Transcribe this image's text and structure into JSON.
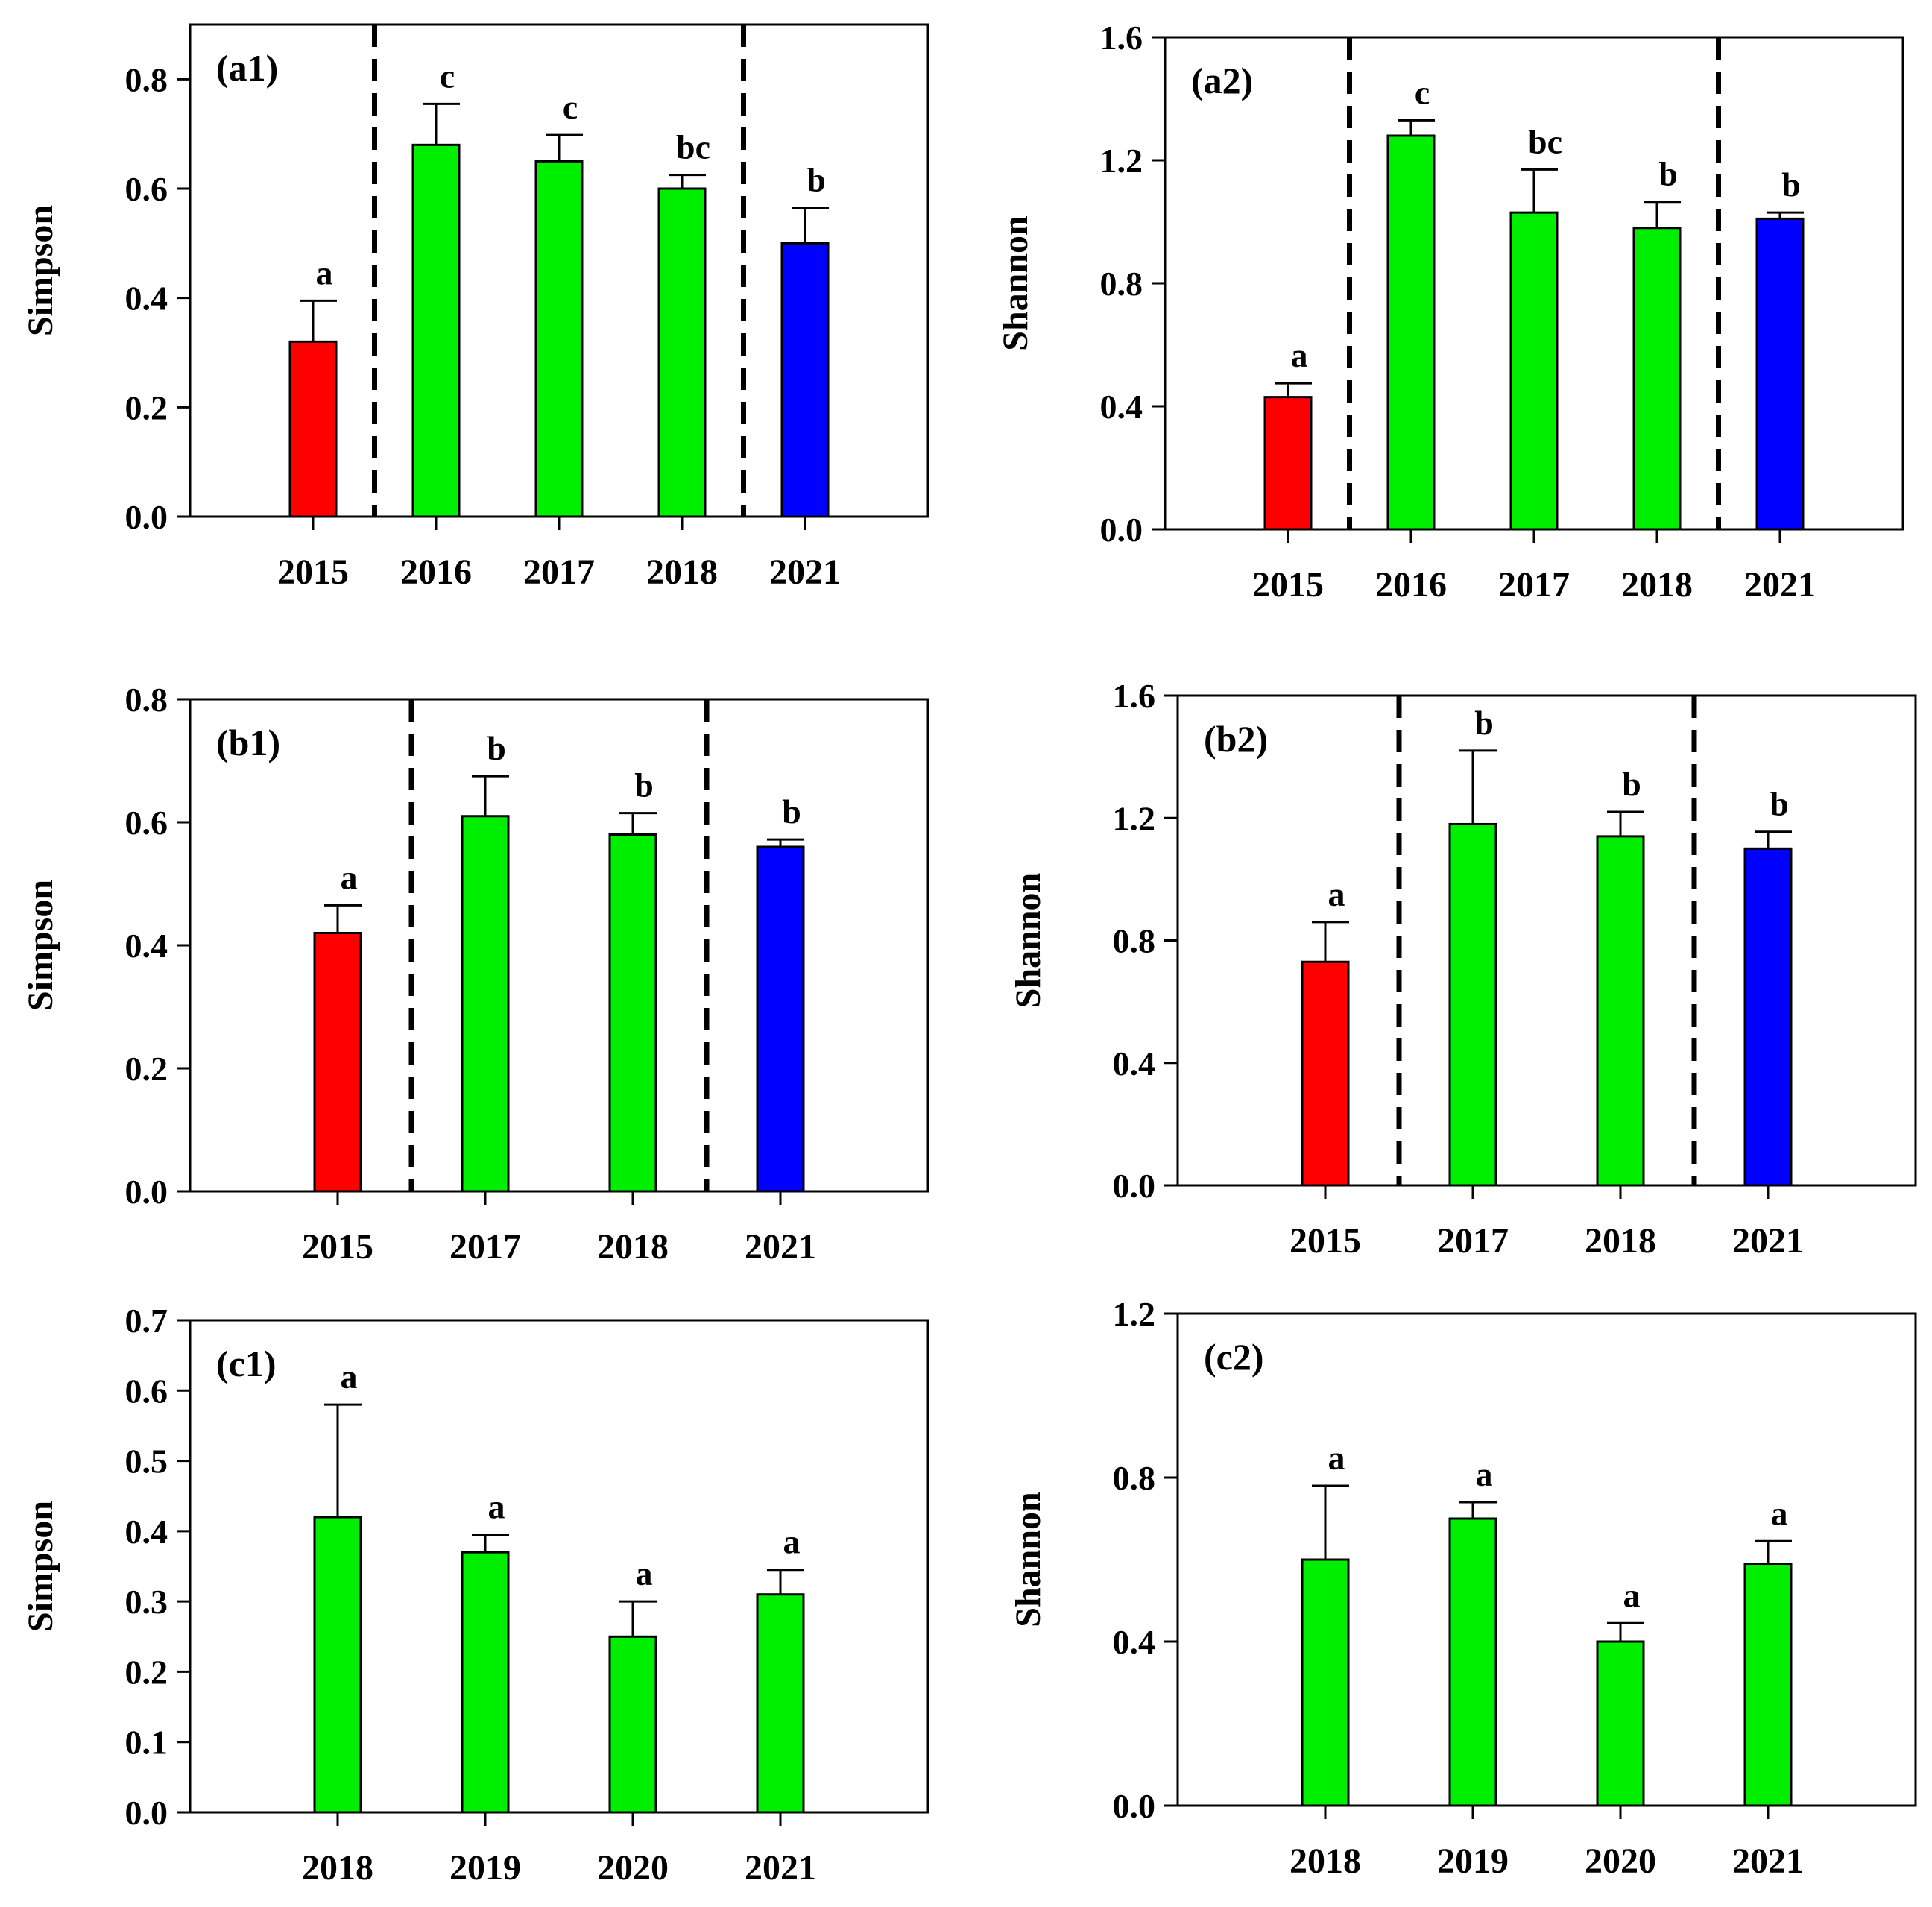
{
  "figure": {
    "colors": {
      "red": "#ff0000",
      "green": "#00ee00",
      "blue": "#0000ff",
      "ink": "#000000"
    },
    "panels": [
      {
        "id": "a1",
        "panel_label": "(a1)",
        "chart_data": {
          "type": "bar",
          "ylabel": "Simpson",
          "xlabel": "",
          "ylim": [
            0,
            0.9
          ],
          "yticks": [
            0,
            0.2,
            0.4,
            0.6,
            0.8
          ],
          "ytick_labels": [
            "0.0",
            "0.2",
            "0.4",
            "0.6",
            "0.8"
          ],
          "categories": [
            "2015",
            "2016",
            "2017",
            "2018",
            "2021"
          ],
          "values": [
            0.32,
            0.68,
            0.65,
            0.6,
            0.5
          ],
          "errors": [
            0.075,
            0.075,
            0.048,
            0.025,
            0.065
          ],
          "sig_letters": [
            "a",
            "c",
            "c",
            "bc",
            "b"
          ],
          "bar_colors": [
            "red",
            "green",
            "green",
            "green",
            "blue"
          ],
          "dividers_after": [
            0,
            3
          ]
        }
      },
      {
        "id": "a2",
        "panel_label": "(a2)",
        "chart_data": {
          "type": "bar",
          "ylabel": "Shannon",
          "xlabel": "",
          "ylim": [
            0,
            1.6
          ],
          "yticks": [
            0,
            0.4,
            0.8,
            1.2,
            1.6
          ],
          "ytick_labels": [
            "0.0",
            "0.4",
            "0.8",
            "1.2",
            "1.6"
          ],
          "categories": [
            "2015",
            "2016",
            "2017",
            "2018",
            "2021"
          ],
          "values": [
            0.43,
            1.28,
            1.03,
            0.98,
            1.01
          ],
          "errors": [
            0.045,
            0.05,
            0.14,
            0.085,
            0.02
          ],
          "sig_letters": [
            "a",
            "c",
            "bc",
            "b",
            "b"
          ],
          "bar_colors": [
            "red",
            "green",
            "green",
            "green",
            "blue"
          ],
          "dividers_after": [
            0,
            3
          ]
        }
      },
      {
        "id": "b1",
        "panel_label": "(b1)",
        "chart_data": {
          "type": "bar",
          "ylabel": "Simpson",
          "xlabel": "",
          "ylim": [
            0,
            0.8
          ],
          "yticks": [
            0,
            0.2,
            0.4,
            0.6,
            0.8
          ],
          "ytick_labels": [
            "0.0",
            "0.2",
            "0.4",
            "0.6",
            "0.8"
          ],
          "categories": [
            "2015",
            "2017",
            "2018",
            "2021"
          ],
          "values": [
            0.42,
            0.61,
            0.58,
            0.56
          ],
          "errors": [
            0.045,
            0.065,
            0.035,
            0.012
          ],
          "sig_letters": [
            "a",
            "b",
            "b",
            "b"
          ],
          "bar_colors": [
            "red",
            "green",
            "green",
            "blue"
          ],
          "dividers_after": [
            0,
            2
          ]
        }
      },
      {
        "id": "b2",
        "panel_label": "(b2)",
        "chart_data": {
          "type": "bar",
          "ylabel": "Shannon",
          "xlabel": "",
          "ylim": [
            0,
            1.6
          ],
          "yticks": [
            0,
            0.4,
            0.8,
            1.2,
            1.6
          ],
          "ytick_labels": [
            "0.0",
            "0.4",
            "0.8",
            "1.2",
            "1.6"
          ],
          "categories": [
            "2015",
            "2017",
            "2018",
            "2021"
          ],
          "values": [
            0.73,
            1.18,
            1.14,
            1.1
          ],
          "errors": [
            0.13,
            0.24,
            0.08,
            0.055
          ],
          "sig_letters": [
            "a",
            "b",
            "b",
            "b"
          ],
          "bar_colors": [
            "red",
            "green",
            "green",
            "blue"
          ],
          "dividers_after": [
            0,
            2
          ]
        }
      },
      {
        "id": "c1",
        "panel_label": "(c1)",
        "chart_data": {
          "type": "bar",
          "ylabel": "Simpson",
          "xlabel": "",
          "ylim": [
            0,
            0.7
          ],
          "yticks": [
            0,
            0.1,
            0.2,
            0.3,
            0.4,
            0.5,
            0.6,
            0.7
          ],
          "ytick_labels": [
            "0.0",
            "0.1",
            "0.2",
            "0.3",
            "0.4",
            "0.5",
            "0.6",
            "0.7"
          ],
          "categories": [
            "2018",
            "2019",
            "2020",
            "2021"
          ],
          "values": [
            0.42,
            0.37,
            0.25,
            0.31
          ],
          "errors": [
            0.16,
            0.025,
            0.05,
            0.035
          ],
          "sig_letters": [
            "a",
            "a",
            "a",
            "a"
          ],
          "bar_colors": [
            "green",
            "green",
            "green",
            "green"
          ],
          "dividers_after": []
        }
      },
      {
        "id": "c2",
        "panel_label": "(c2)",
        "chart_data": {
          "type": "bar",
          "ylabel": "Shannon",
          "xlabel": "",
          "ylim": [
            0,
            1.2
          ],
          "yticks": [
            0,
            0.4,
            0.8,
            1.2
          ],
          "ytick_labels": [
            "0.0",
            "0.4",
            "0.8",
            "1.2"
          ],
          "categories": [
            "2018",
            "2019",
            "2020",
            "2021"
          ],
          "values": [
            0.6,
            0.7,
            0.4,
            0.59
          ],
          "errors": [
            0.18,
            0.04,
            0.045,
            0.055
          ],
          "sig_letters": [
            "a",
            "a",
            "a",
            "a"
          ],
          "bar_colors": [
            "green",
            "green",
            "green",
            "green"
          ],
          "dividers_after": []
        }
      }
    ]
  }
}
